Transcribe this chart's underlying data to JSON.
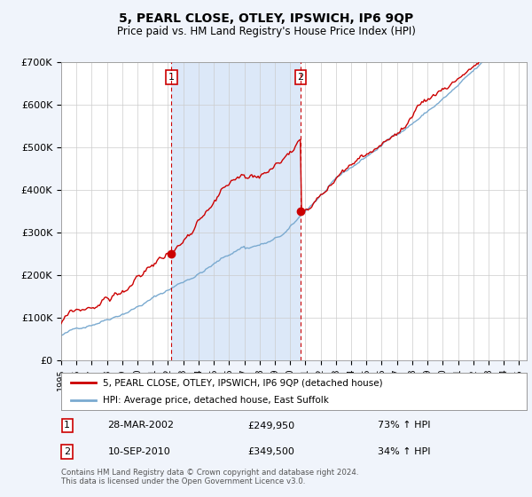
{
  "title": "5, PEARL CLOSE, OTLEY, IPSWICH, IP6 9QP",
  "subtitle": "Price paid vs. HM Land Registry's House Price Index (HPI)",
  "hpi_label": "HPI: Average price, detached house, East Suffolk",
  "property_label": "5, PEARL CLOSE, OTLEY, IPSWICH, IP6 9QP (detached house)",
  "sale1_date": "28-MAR-2002",
  "sale1_price": 249950,
  "sale1_hpi": "73% ↑ HPI",
  "sale2_date": "10-SEP-2010",
  "sale2_price": 349500,
  "sale2_hpi": "34% ↑ HPI",
  "sale1_x": 2002.23,
  "sale2_x": 2010.69,
  "footer": "Contains HM Land Registry data © Crown copyright and database right 2024.\nThis data is licensed under the Open Government Licence v3.0.",
  "ylim_max": 700000,
  "xmin": 1995.0,
  "xmax": 2025.5,
  "background_color": "#f0f4fb",
  "plot_bg": "#ffffff",
  "span_color": "#dce8f8",
  "red_color": "#cc0000",
  "blue_color": "#7aaad0",
  "dashed_color": "#cc0000"
}
